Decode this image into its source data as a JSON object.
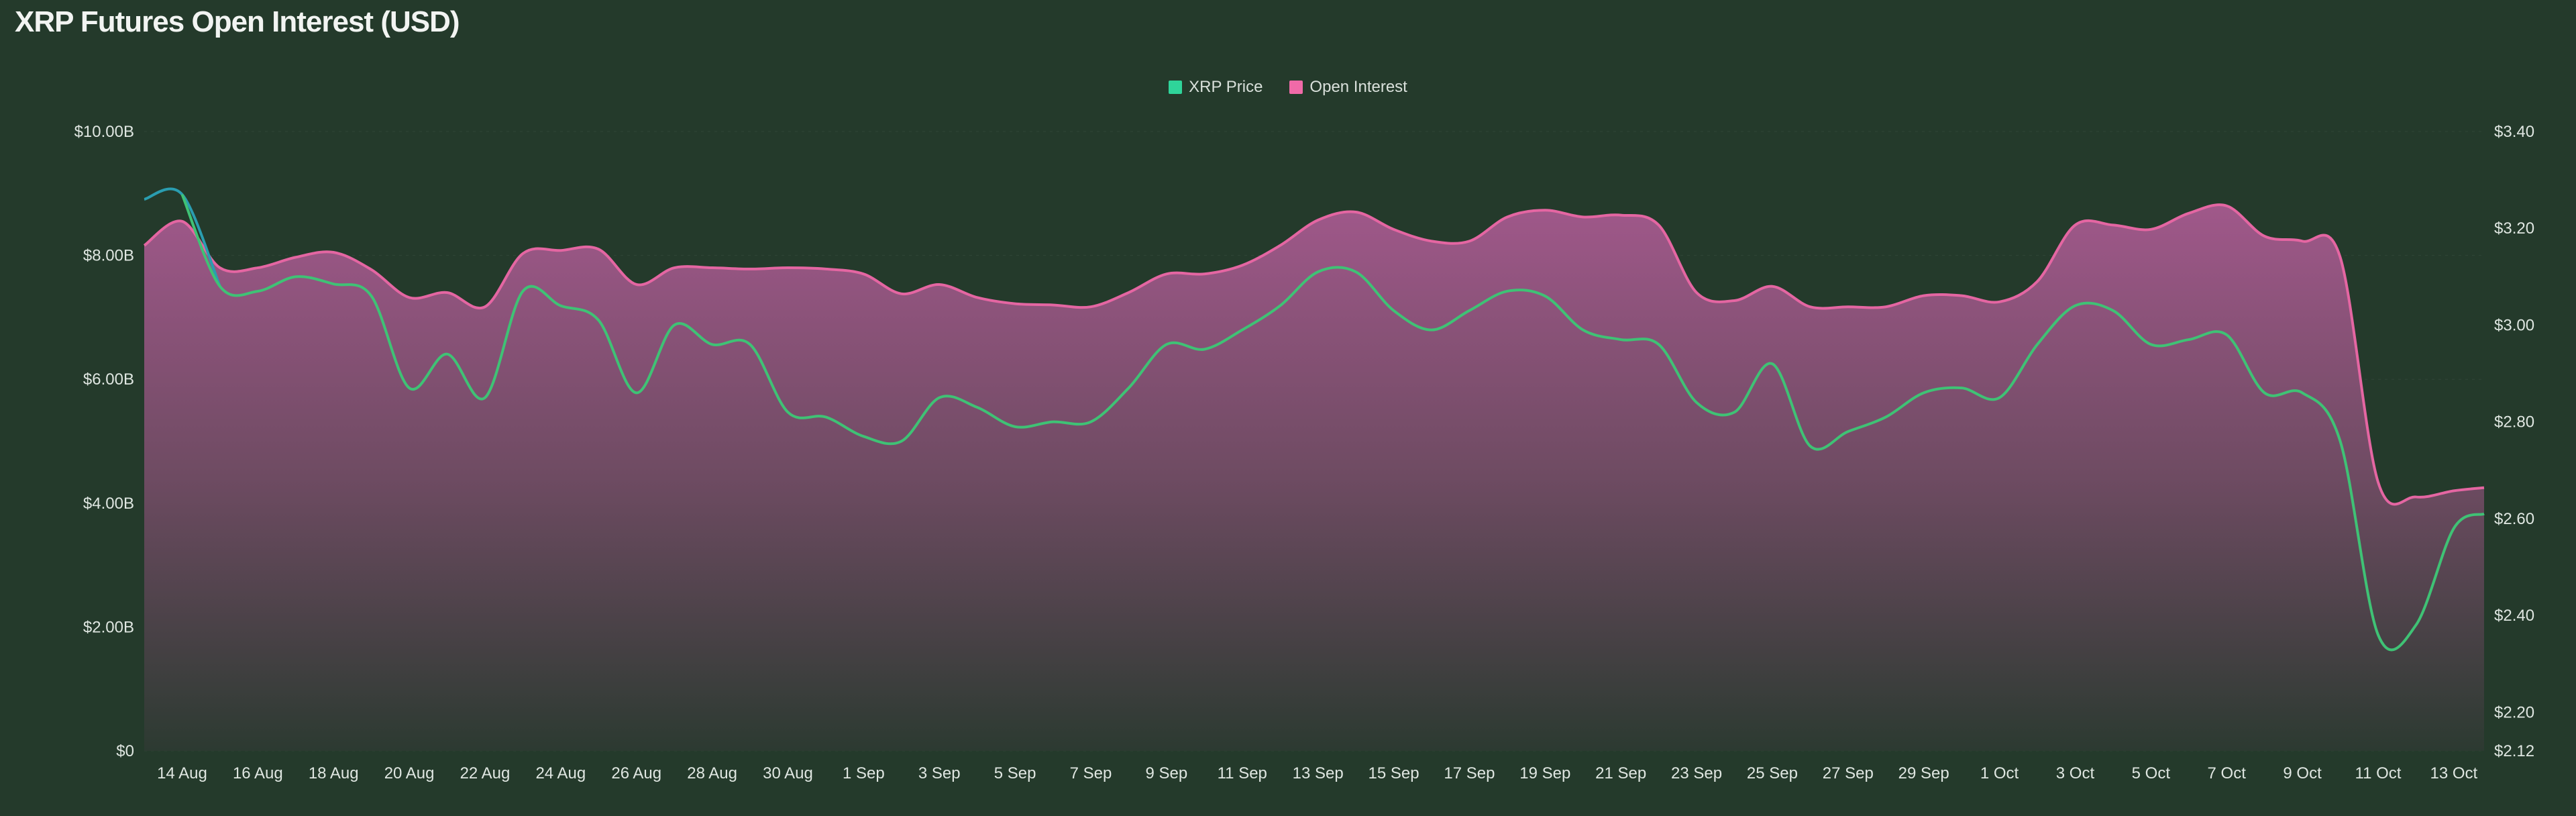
{
  "chart_data": {
    "type": "area",
    "title": "XRP Futures Open Interest (USD)",
    "legend": [
      {
        "name": "XRP Price",
        "color": "#2fd49a"
      },
      {
        "name": "Open Interest",
        "color": "#f06aa8"
      }
    ],
    "legend_position": "top-center",
    "x_dates": [
      "13 Aug",
      "14 Aug",
      "15 Aug",
      "16 Aug",
      "17 Aug",
      "18 Aug",
      "19 Aug",
      "20 Aug",
      "21 Aug",
      "22 Aug",
      "23 Aug",
      "24 Aug",
      "25 Aug",
      "26 Aug",
      "27 Aug",
      "28 Aug",
      "29 Aug",
      "30 Aug",
      "31 Aug",
      "1 Sep",
      "2 Sep",
      "3 Sep",
      "4 Sep",
      "5 Sep",
      "6 Sep",
      "7 Sep",
      "8 Sep",
      "9 Sep",
      "10 Sep",
      "11 Sep",
      "12 Sep",
      "13 Sep",
      "14 Sep",
      "15 Sep",
      "16 Sep",
      "17 Sep",
      "18 Sep",
      "19 Sep",
      "20 Sep",
      "21 Sep",
      "22 Sep",
      "23 Sep",
      "24 Sep",
      "25 Sep",
      "26 Sep",
      "27 Sep",
      "28 Sep",
      "29 Sep",
      "30 Sep",
      "1 Oct",
      "2 Oct",
      "3 Oct",
      "4 Oct",
      "5 Oct",
      "6 Oct",
      "7 Oct",
      "8 Oct",
      "9 Oct",
      "10 Oct",
      "11 Oct",
      "12 Oct",
      "13 Oct"
    ],
    "x_tick_labels": [
      "14 Aug",
      "16 Aug",
      "18 Aug",
      "20 Aug",
      "22 Aug",
      "24 Aug",
      "26 Aug",
      "28 Aug",
      "30 Aug",
      "1 Sep",
      "3 Sep",
      "5 Sep",
      "7 Sep",
      "9 Sep",
      "11 Sep",
      "13 Sep",
      "15 Sep",
      "17 Sep",
      "19 Sep",
      "21 Sep",
      "23 Sep",
      "25 Sep",
      "27 Sep",
      "29 Sep",
      "1 Oct",
      "3 Oct",
      "5 Oct",
      "7 Oct",
      "9 Oct",
      "11 Oct",
      "13 Oct"
    ],
    "series": [
      {
        "name": "Open Interest",
        "axis": "left",
        "unit": "USD billions",
        "values": [
          8.16,
          8.55,
          7.8,
          7.8,
          7.97,
          8.05,
          7.77,
          7.32,
          7.4,
          7.17,
          8.03,
          8.08,
          8.1,
          7.53,
          7.8,
          7.8,
          7.78,
          7.8,
          7.78,
          7.7,
          7.38,
          7.53,
          7.32,
          7.22,
          7.2,
          7.17,
          7.4,
          7.7,
          7.7,
          7.84,
          8.16,
          8.57,
          8.7,
          8.42,
          8.23,
          8.23,
          8.62,
          8.73,
          8.62,
          8.65,
          8.49,
          7.4,
          7.27,
          7.5,
          7.17,
          7.17,
          7.17,
          7.35,
          7.35,
          7.25,
          7.58,
          8.49,
          8.49,
          8.42,
          8.68,
          8.8,
          8.31,
          8.23,
          7.97,
          4.34,
          4.1,
          4.2
        ]
      },
      {
        "name": "XRP Price",
        "axis": "right",
        "unit": "USD",
        "values": [
          3.26,
          3.27,
          3.08,
          3.07,
          3.1,
          3.085,
          3.06,
          2.87,
          2.94,
          2.85,
          3.07,
          3.04,
          3.01,
          2.86,
          3.0,
          2.96,
          2.96,
          2.82,
          2.81,
          2.77,
          2.76,
          2.85,
          2.83,
          2.79,
          2.8,
          2.8,
          2.87,
          2.96,
          2.95,
          2.99,
          3.04,
          3.11,
          3.11,
          3.03,
          2.99,
          3.03,
          3.07,
          3.06,
          2.99,
          2.97,
          2.96,
          2.84,
          2.82,
          2.92,
          2.75,
          2.78,
          2.81,
          2.86,
          2.87,
          2.85,
          2.96,
          3.04,
          3.03,
          2.96,
          2.97,
          2.98,
          2.86,
          2.86,
          2.76,
          2.36,
          2.38,
          2.58
        ]
      }
    ],
    "y_left": {
      "label": "",
      "ticks": [
        "$0",
        "$2.00B",
        "$4.00B",
        "$6.00B",
        "$8.00B",
        "$10.00B"
      ],
      "tick_values": [
        0,
        2,
        4,
        6,
        8,
        10
      ],
      "ylim": [
        0,
        10
      ]
    },
    "y_right": {
      "label": "",
      "ticks": [
        "$2.12",
        "$2.20",
        "$2.40",
        "$2.60",
        "$2.80",
        "$3.00",
        "$3.20",
        "$3.40"
      ],
      "tick_values": [
        2.12,
        2.2,
        2.4,
        2.6,
        2.8,
        3.0,
        3.2,
        3.4
      ],
      "ylim": [
        2.12,
        3.4
      ]
    },
    "grid": true
  }
}
